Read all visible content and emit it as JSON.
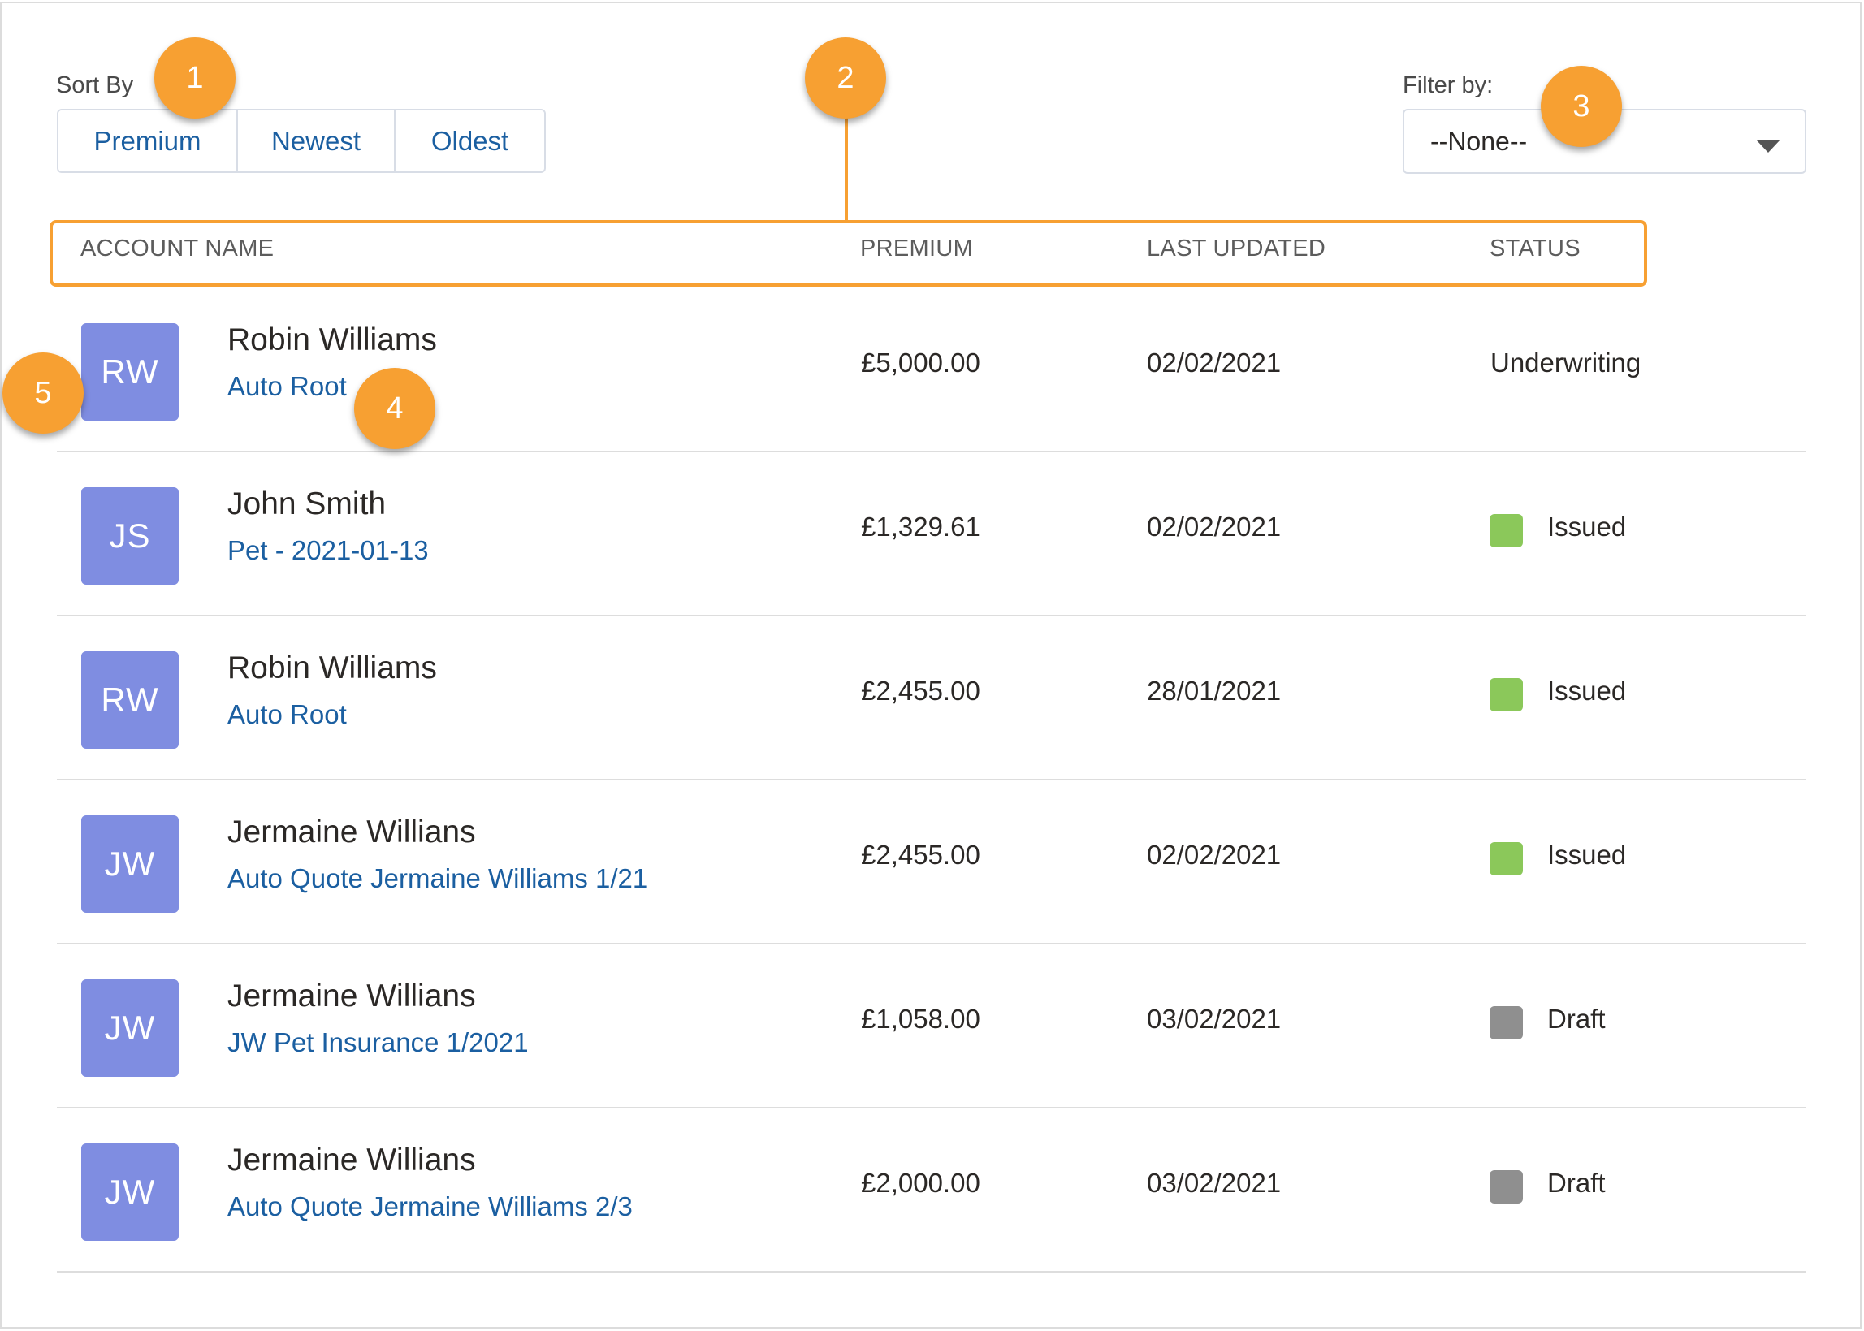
{
  "sort": {
    "label": "Sort By",
    "buttons": [
      "Premium",
      "Newest",
      "Oldest"
    ]
  },
  "filter": {
    "label": "Filter by:",
    "selected": "--None--"
  },
  "columns": {
    "account_name": "ACCOUNT NAME",
    "premium": "PREMIUM",
    "last_updated": "LAST UPDATED",
    "status": "STATUS"
  },
  "rows": [
    {
      "initials": "RW",
      "name": "Robin Williams",
      "policy": "Auto Root",
      "premium": "£5,000.00",
      "updated": "02/02/2021",
      "status": "Underwriting",
      "status_color": ""
    },
    {
      "initials": "JS",
      "name": "John Smith",
      "policy": "Pet - 2021-01-13",
      "premium": "£1,329.61",
      "updated": "02/02/2021",
      "status": "Issued",
      "status_color": "#8bc85a"
    },
    {
      "initials": "RW",
      "name": "Robin Williams",
      "policy": "Auto Root",
      "premium": "£2,455.00",
      "updated": "28/01/2021",
      "status": "Issued",
      "status_color": "#8bc85a"
    },
    {
      "initials": "JW",
      "name": "Jermaine Willians",
      "policy": "Auto Quote Jermaine Williams 1/21",
      "premium": "£2,455.00",
      "updated": "02/02/2021",
      "status": "Issued",
      "status_color": "#8bc85a"
    },
    {
      "initials": "JW",
      "name": "Jermaine Willians",
      "policy": "JW Pet Insurance 1/2021",
      "premium": "£1,058.00",
      "updated": "03/02/2021",
      "status": "Draft",
      "status_color": "#8f8f8f"
    },
    {
      "initials": "JW",
      "name": "Jermaine Willians",
      "policy": "Auto Quote Jermaine Williams 2/3",
      "premium": "£2,000.00",
      "updated": "03/02/2021",
      "status": "Draft",
      "status_color": "#8f8f8f"
    }
  ],
  "callouts": [
    "1",
    "2",
    "3",
    "4",
    "5"
  ],
  "colors": {
    "accent": "#f7a032",
    "link": "#1b5fa1",
    "avatar": "#7f8de1"
  }
}
